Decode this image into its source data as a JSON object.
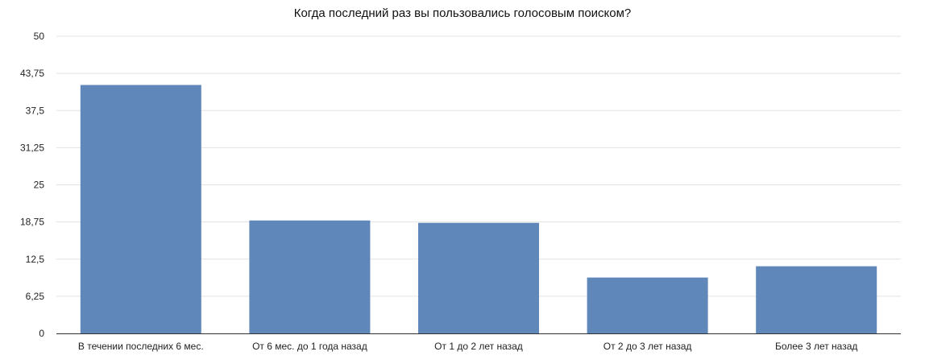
{
  "chart_data": {
    "type": "bar",
    "title": "Когда последний раз вы пользовались голосовым поиском?",
    "xlabel": "",
    "ylabel": "",
    "categories": [
      "В течении последних 6 мес.",
      "От 6 мес. до 1 года назад",
      "От 1 до 2 лет назад",
      "От 2 до 3 лет назад",
      "Более 3 лет назад"
    ],
    "values": [
      41.8,
      19.0,
      18.6,
      9.4,
      11.3
    ],
    "ylim": [
      0,
      50
    ],
    "yticks": [
      "0",
      "6,25",
      "12,5",
      "18,75",
      "25",
      "31,25",
      "37,5",
      "43,75",
      "50"
    ],
    "grid": true,
    "legend": "none",
    "bar_color": "#5f87b9"
  }
}
